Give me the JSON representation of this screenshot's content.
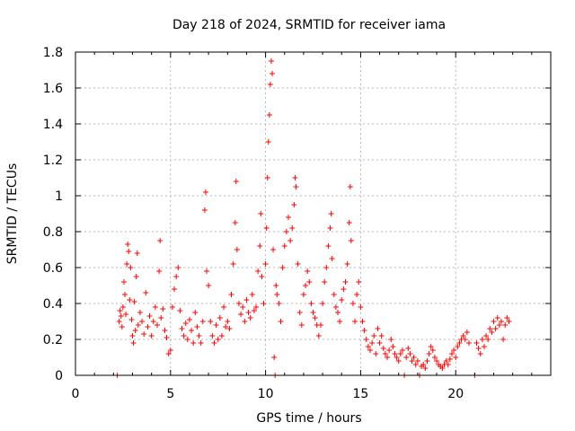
{
  "chart_data": {
    "type": "scatter",
    "title": "Day 218 of 2024, SRMTID for receiver iama",
    "xlabel": "GPS time / hours",
    "ylabel": "SRMTID / TECUs",
    "xlim": [
      0,
      25
    ],
    "ylim": [
      0,
      1.8
    ],
    "x_ticks": [
      "0",
      "5",
      "10",
      "15",
      "20"
    ],
    "x_tick_values": [
      0,
      5,
      10,
      15,
      20
    ],
    "y_ticks": [
      "0",
      "0.2",
      "0.4",
      "0.6",
      "0.8",
      "1",
      "1.2",
      "1.4",
      "1.6",
      "1.8"
    ],
    "y_tick_values": [
      0,
      0.2,
      0.4,
      0.6,
      0.8,
      1.0,
      1.2,
      1.4,
      1.6,
      1.8
    ],
    "grid": true,
    "series": [
      {
        "name": "SRMTID",
        "color": "#ff0000",
        "marker": "plus",
        "points": [
          [
            2.2,
            0.0
          ],
          [
            2.3,
            0.3
          ],
          [
            2.35,
            0.36
          ],
          [
            2.4,
            0.33
          ],
          [
            2.45,
            0.27
          ],
          [
            2.5,
            0.38
          ],
          [
            2.55,
            0.52
          ],
          [
            2.6,
            0.45
          ],
          [
            2.65,
            0.34
          ],
          [
            2.7,
            0.62
          ],
          [
            2.75,
            0.73
          ],
          [
            2.8,
            0.69
          ],
          [
            2.85,
            0.42
          ],
          [
            2.9,
            0.6
          ],
          [
            2.95,
            0.31
          ],
          [
            3.0,
            0.22
          ],
          [
            3.05,
            0.18
          ],
          [
            3.1,
            0.41
          ],
          [
            3.15,
            0.25
          ],
          [
            3.2,
            0.55
          ],
          [
            3.25,
            0.68
          ],
          [
            3.3,
            0.28
          ],
          [
            3.4,
            0.35
          ],
          [
            3.5,
            0.3
          ],
          [
            3.6,
            0.23
          ],
          [
            3.7,
            0.46
          ],
          [
            3.8,
            0.27
          ],
          [
            3.9,
            0.33
          ],
          [
            4.0,
            0.22
          ],
          [
            4.1,
            0.3
          ],
          [
            4.2,
            0.38
          ],
          [
            4.3,
            0.28
          ],
          [
            4.4,
            0.58
          ],
          [
            4.45,
            0.75
          ],
          [
            4.5,
            0.32
          ],
          [
            4.6,
            0.37
          ],
          [
            4.7,
            0.25
          ],
          [
            4.8,
            0.21
          ],
          [
            4.9,
            0.12
          ],
          [
            5.0,
            0.14
          ],
          [
            5.1,
            0.38
          ],
          [
            5.2,
            0.48
          ],
          [
            5.3,
            0.55
          ],
          [
            5.4,
            0.6
          ],
          [
            5.5,
            0.36
          ],
          [
            5.6,
            0.26
          ],
          [
            5.7,
            0.22
          ],
          [
            5.8,
            0.29
          ],
          [
            5.9,
            0.2
          ],
          [
            6.0,
            0.31
          ],
          [
            6.1,
            0.25
          ],
          [
            6.2,
            0.18
          ],
          [
            6.3,
            0.35
          ],
          [
            6.4,
            0.27
          ],
          [
            6.5,
            0.22
          ],
          [
            6.6,
            0.18
          ],
          [
            6.7,
            0.3
          ],
          [
            6.8,
            0.92
          ],
          [
            6.85,
            1.02
          ],
          [
            6.9,
            0.58
          ],
          [
            7.0,
            0.5
          ],
          [
            7.1,
            0.3
          ],
          [
            7.2,
            0.22
          ],
          [
            7.3,
            0.18
          ],
          [
            7.4,
            0.28
          ],
          [
            7.5,
            0.2
          ],
          [
            7.6,
            0.32
          ],
          [
            7.7,
            0.22
          ],
          [
            7.8,
            0.38
          ],
          [
            7.9,
            0.27
          ],
          [
            8.0,
            0.3
          ],
          [
            8.1,
            0.26
          ],
          [
            8.2,
            0.45
          ],
          [
            8.3,
            0.62
          ],
          [
            8.4,
            0.85
          ],
          [
            8.45,
            1.08
          ],
          [
            8.5,
            0.7
          ],
          [
            8.6,
            0.4
          ],
          [
            8.7,
            0.34
          ],
          [
            8.8,
            0.38
          ],
          [
            8.9,
            0.3
          ],
          [
            9.0,
            0.42
          ],
          [
            9.1,
            0.35
          ],
          [
            9.2,
            0.32
          ],
          [
            9.3,
            0.45
          ],
          [
            9.4,
            0.36
          ],
          [
            9.5,
            0.38
          ],
          [
            9.6,
            0.58
          ],
          [
            9.7,
            0.72
          ],
          [
            9.75,
            0.9
          ],
          [
            9.8,
            0.55
          ],
          [
            9.9,
            0.4
          ],
          [
            10.0,
            0.62
          ],
          [
            10.05,
            0.82
          ],
          [
            10.1,
            1.1
          ],
          [
            10.15,
            1.3
          ],
          [
            10.2,
            1.45
          ],
          [
            10.25,
            1.62
          ],
          [
            10.3,
            1.75
          ],
          [
            10.35,
            1.68
          ],
          [
            10.4,
            0.7
          ],
          [
            10.45,
            0.1
          ],
          [
            10.5,
            0.0
          ],
          [
            10.55,
            0.5
          ],
          [
            10.6,
            0.45
          ],
          [
            10.7,
            0.4
          ],
          [
            10.8,
            0.3
          ],
          [
            10.9,
            0.6
          ],
          [
            11.0,
            0.72
          ],
          [
            11.1,
            0.8
          ],
          [
            11.2,
            0.88
          ],
          [
            11.3,
            0.75
          ],
          [
            11.4,
            0.82
          ],
          [
            11.5,
            0.95
          ],
          [
            11.55,
            1.1
          ],
          [
            11.6,
            1.05
          ],
          [
            11.7,
            0.62
          ],
          [
            11.8,
            0.35
          ],
          [
            11.9,
            0.28
          ],
          [
            12.0,
            0.45
          ],
          [
            12.1,
            0.5
          ],
          [
            12.2,
            0.58
          ],
          [
            12.3,
            0.52
          ],
          [
            12.4,
            0.4
          ],
          [
            12.5,
            0.35
          ],
          [
            12.6,
            0.32
          ],
          [
            12.7,
            0.28
          ],
          [
            12.8,
            0.22
          ],
          [
            12.9,
            0.28
          ],
          [
            13.0,
            0.4
          ],
          [
            13.1,
            0.52
          ],
          [
            13.2,
            0.6
          ],
          [
            13.3,
            0.72
          ],
          [
            13.4,
            0.82
          ],
          [
            13.45,
            0.9
          ],
          [
            13.5,
            0.65
          ],
          [
            13.6,
            0.45
          ],
          [
            13.7,
            0.38
          ],
          [
            13.8,
            0.35
          ],
          [
            13.9,
            0.3
          ],
          [
            14.0,
            0.42
          ],
          [
            14.1,
            0.48
          ],
          [
            14.2,
            0.52
          ],
          [
            14.3,
            0.62
          ],
          [
            14.4,
            0.85
          ],
          [
            14.45,
            1.05
          ],
          [
            14.5,
            0.75
          ],
          [
            14.6,
            0.4
          ],
          [
            14.7,
            0.3
          ],
          [
            14.8,
            0.45
          ],
          [
            14.9,
            0.52
          ],
          [
            15.0,
            0.38
          ],
          [
            15.1,
            0.3
          ],
          [
            15.2,
            0.25
          ],
          [
            15.3,
            0.2
          ],
          [
            15.4,
            0.16
          ],
          [
            15.5,
            0.14
          ],
          [
            15.6,
            0.18
          ],
          [
            15.7,
            0.22
          ],
          [
            15.8,
            0.12
          ],
          [
            15.9,
            0.26
          ],
          [
            16.0,
            0.18
          ],
          [
            16.1,
            0.22
          ],
          [
            16.2,
            0.15
          ],
          [
            16.3,
            0.12
          ],
          [
            16.4,
            0.1
          ],
          [
            16.5,
            0.14
          ],
          [
            16.6,
            0.2
          ],
          [
            16.7,
            0.16
          ],
          [
            16.8,
            0.12
          ],
          [
            16.9,
            0.1
          ],
          [
            17.0,
            0.08
          ],
          [
            17.1,
            0.12
          ],
          [
            17.2,
            0.14
          ],
          [
            17.3,
            0.0
          ],
          [
            17.4,
            0.1
          ],
          [
            17.5,
            0.15
          ],
          [
            17.6,
            0.12
          ],
          [
            17.7,
            0.08
          ],
          [
            17.8,
            0.1
          ],
          [
            17.9,
            0.06
          ],
          [
            18.0,
            0.08
          ],
          [
            18.1,
            0.0
          ],
          [
            18.2,
            0.05
          ],
          [
            18.3,
            0.06
          ],
          [
            18.4,
            0.04
          ],
          [
            18.5,
            0.08
          ],
          [
            18.6,
            0.12
          ],
          [
            18.7,
            0.16
          ],
          [
            18.8,
            0.14
          ],
          [
            18.9,
            0.1
          ],
          [
            19.0,
            0.08
          ],
          [
            19.1,
            0.06
          ],
          [
            19.2,
            0.05
          ],
          [
            19.3,
            0.04
          ],
          [
            19.4,
            0.06
          ],
          [
            19.5,
            0.08
          ],
          [
            19.6,
            0.06
          ],
          [
            19.7,
            0.09
          ],
          [
            19.8,
            0.12
          ],
          [
            19.9,
            0.14
          ],
          [
            20.0,
            0.1
          ],
          [
            20.1,
            0.16
          ],
          [
            20.2,
            0.18
          ],
          [
            20.3,
            0.2
          ],
          [
            20.4,
            0.22
          ],
          [
            20.5,
            0.2
          ],
          [
            20.6,
            0.24
          ],
          [
            20.7,
            0.18
          ],
          [
            21.0,
            0.0
          ],
          [
            21.1,
            0.18
          ],
          [
            21.2,
            0.15
          ],
          [
            21.3,
            0.12
          ],
          [
            21.4,
            0.2
          ],
          [
            21.5,
            0.16
          ],
          [
            21.6,
            0.22
          ],
          [
            21.7,
            0.2
          ],
          [
            21.8,
            0.26
          ],
          [
            21.9,
            0.24
          ],
          [
            22.0,
            0.3
          ],
          [
            22.1,
            0.26
          ],
          [
            22.2,
            0.32
          ],
          [
            22.3,
            0.28
          ],
          [
            22.4,
            0.3
          ],
          [
            22.5,
            0.2
          ],
          [
            22.6,
            0.28
          ],
          [
            22.7,
            0.32
          ],
          [
            22.8,
            0.3
          ]
        ]
      }
    ]
  }
}
